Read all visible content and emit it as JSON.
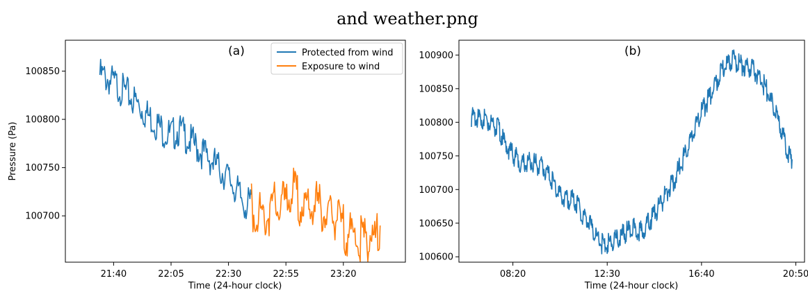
{
  "figure": {
    "title": "and weather.png"
  },
  "chart_data": [
    {
      "type": "line",
      "panel_label": "(a)",
      "xlabel": "Time (24-hour clock)",
      "ylabel": "Pressure (Pa)",
      "xticks": [
        "21:40",
        "22:05",
        "22:30",
        "22:55",
        "23:20"
      ],
      "yticks": [
        100700,
        100750,
        100800,
        100850
      ],
      "xlim": [
        "21:19",
        "23:47"
      ],
      "ylim": [
        100652,
        100882
      ],
      "legend": {
        "placement": "upper right",
        "entries": [
          "Protected from wind",
          "Exposure to wind"
        ]
      },
      "grid": false,
      "series": [
        {
          "name": "Protected from wind",
          "color": "#1f77b4",
          "points": [
            [
              "21:34",
              100855
            ],
            [
              "21:38",
              100850
            ],
            [
              "21:42",
              100843
            ],
            [
              "21:46",
              100835
            ],
            [
              "21:50",
              100826
            ],
            [
              "21:54",
              100815
            ],
            [
              "21:58",
              100806
            ],
            [
              "22:02",
              100796
            ],
            [
              "22:05",
              100792
            ],
            [
              "22:08",
              100798
            ],
            [
              "22:10",
              100795
            ],
            [
              "22:14",
              100785
            ],
            [
              "22:18",
              100776
            ],
            [
              "22:22",
              100768
            ],
            [
              "22:25",
              100760
            ],
            [
              "22:28",
              100753
            ],
            [
              "22:31",
              100745
            ],
            [
              "22:34",
              100733
            ],
            [
              "22:36",
              100725
            ],
            [
              "22:38",
              100720
            ],
            [
              "22:40",
              100722
            ]
          ]
        },
        {
          "name": "Exposure to wind",
          "color": "#ff7f0e",
          "points": [
            [
              "22:40",
              100722
            ],
            [
              "22:42",
              100718
            ],
            [
              "22:44",
              100716
            ],
            [
              "22:46",
              100712
            ],
            [
              "22:48",
              100718
            ],
            [
              "22:50",
              100725
            ],
            [
              "22:52",
              100722
            ],
            [
              "22:54",
              100726
            ],
            [
              "22:56",
              100735
            ],
            [
              "22:58",
              100738
            ],
            [
              "23:00",
              100732
            ],
            [
              "23:02",
              100724
            ],
            [
              "23:04",
              100716
            ],
            [
              "23:06",
              100722
            ],
            [
              "23:08",
              100728
            ],
            [
              "23:10",
              100720
            ],
            [
              "23:12",
              100716
            ],
            [
              "23:14",
              100709
            ],
            [
              "23:16",
              100712
            ],
            [
              "23:18",
              100707
            ],
            [
              "23:20",
              100700
            ],
            [
              "23:22",
              100696
            ],
            [
              "23:24",
              100694
            ],
            [
              "23:26",
              100688
            ],
            [
              "23:28",
              100687
            ],
            [
              "23:30",
              100690
            ],
            [
              "23:32",
              100694
            ],
            [
              "23:34",
              100690
            ],
            [
              "23:36",
              100690
            ]
          ]
        }
      ]
    },
    {
      "type": "line",
      "panel_label": "(b)",
      "xlabel": "Time (24-hour clock)",
      "ylabel": "",
      "xticks": [
        "08:20",
        "12:30",
        "16:40",
        "20:50"
      ],
      "yticks": [
        100600,
        100650,
        100700,
        100750,
        100800,
        100850,
        100900
      ],
      "xlim": [
        "05:57",
        "21:13"
      ],
      "ylim": [
        100592,
        100922
      ],
      "legend": null,
      "grid": false,
      "series": [
        {
          "name": "",
          "color": "#1f77b4",
          "points": [
            [
              "06:30",
              100815
            ],
            [
              "07:10",
              100812
            ],
            [
              "07:40",
              100800
            ],
            [
              "08:00",
              100775
            ],
            [
              "08:20",
              100760
            ],
            [
              "08:45",
              100745
            ],
            [
              "09:10",
              100750
            ],
            [
              "09:40",
              100740
            ],
            [
              "10:00",
              100725
            ],
            [
              "10:20",
              100705
            ],
            [
              "10:40",
              100690
            ],
            [
              "11:00",
              100695
            ],
            [
              "11:20",
              100675
            ],
            [
              "11:40",
              100660
            ],
            [
              "12:00",
              100640
            ],
            [
              "12:20",
              100625
            ],
            [
              "12:40",
              100628
            ],
            [
              "13:00",
              100635
            ],
            [
              "13:20",
              100645
            ],
            [
              "13:40",
              100650
            ],
            [
              "14:00",
              100645
            ],
            [
              "14:20",
              100660
            ],
            [
              "14:40",
              100675
            ],
            [
              "15:00",
              100695
            ],
            [
              "15:30",
              100725
            ],
            [
              "16:00",
              100765
            ],
            [
              "16:30",
              100810
            ],
            [
              "17:00",
              100845
            ],
            [
              "17:30",
              100880
            ],
            [
              "18:00",
              100902
            ],
            [
              "18:20",
              100895
            ],
            [
              "18:40",
              100890
            ],
            [
              "19:00",
              100885
            ],
            [
              "19:30",
              100860
            ],
            [
              "20:00",
              100815
            ],
            [
              "20:20",
              100780
            ],
            [
              "20:40",
              100745
            ]
          ]
        }
      ]
    }
  ]
}
